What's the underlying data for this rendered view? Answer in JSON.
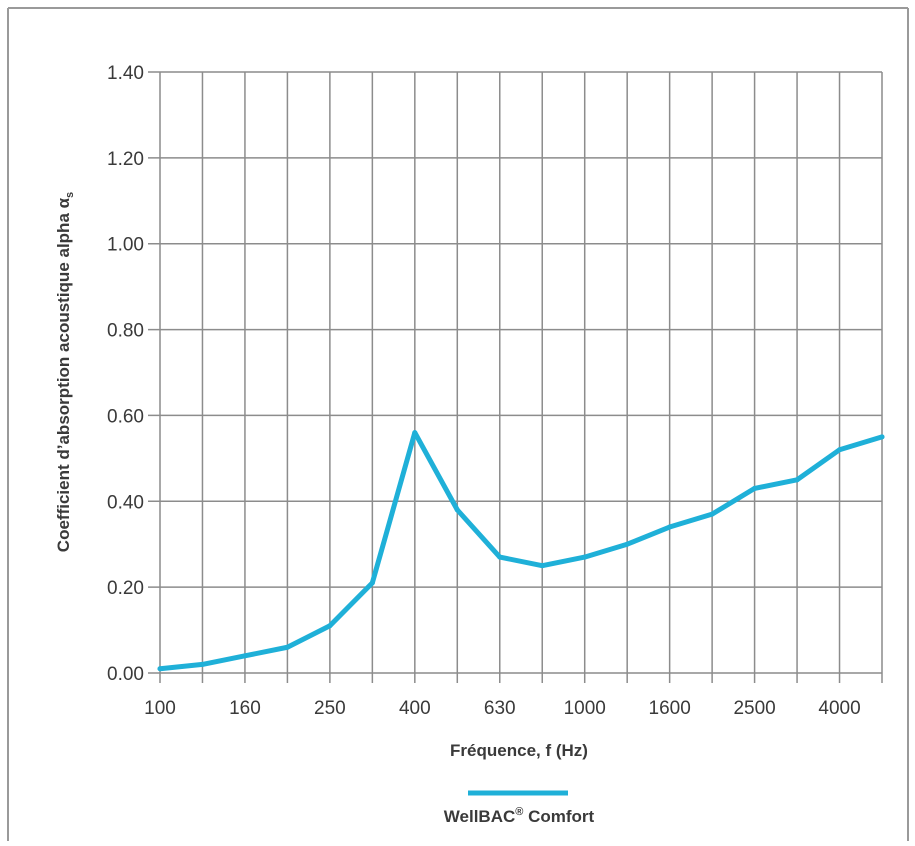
{
  "chart_data": {
    "type": "line",
    "xlabel": "Fréquence, f (Hz)",
    "ylabel": {
      "text": "Coefficient d’absorption acoustique alpha α",
      "subscript": "s"
    },
    "x_tick_labels": [
      "100",
      "160",
      "250",
      "400",
      "630",
      "1000",
      "1600",
      "2500",
      "4000"
    ],
    "x": [
      "100",
      "125",
      "160",
      "200",
      "250",
      "315",
      "400",
      "500",
      "630",
      "800",
      "1000",
      "1250",
      "1600",
      "2000",
      "2500",
      "3150",
      "4000",
      "5000"
    ],
    "y_ticks": [
      "0.00",
      "0.20",
      "0.40",
      "0.60",
      "0.80",
      "1.00",
      "1.20",
      "1.40"
    ],
    "ylim": [
      0,
      1.4
    ],
    "grid": true,
    "legend_position": "bottom-center",
    "series": [
      {
        "name": "WellBAC",
        "name_superscript": "®",
        "name_suffix": " Comfort",
        "color": "#1fb0d8",
        "values": [
          0.01,
          0.02,
          0.04,
          0.06,
          0.11,
          0.21,
          0.56,
          0.38,
          0.27,
          0.25,
          0.27,
          0.3,
          0.34,
          0.37,
          0.43,
          0.45,
          0.52,
          0.55
        ]
      }
    ],
    "colors": {
      "grid": "#8c8c8c",
      "frame": "#9a9a9a",
      "text": "#3a3a3a"
    }
  }
}
